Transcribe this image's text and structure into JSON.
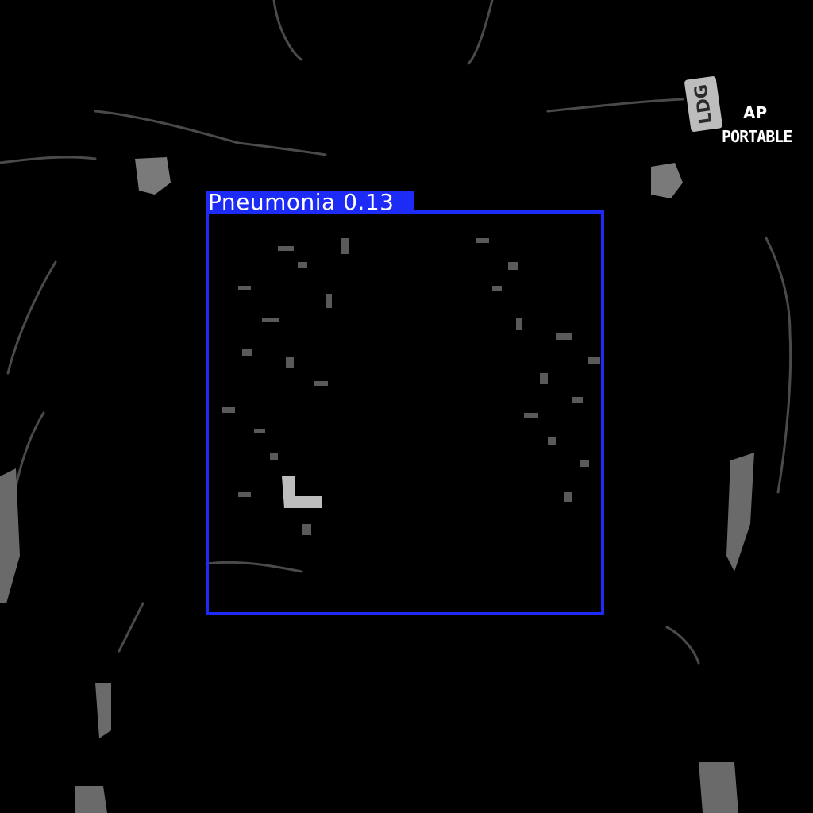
{
  "detection": {
    "label": "Pneumonia",
    "confidence": "0.13",
    "box_color": "#1c2bf5"
  },
  "image_markers": {
    "view": "AP",
    "mode": "PORTABLE",
    "side_marker": "LDG"
  }
}
